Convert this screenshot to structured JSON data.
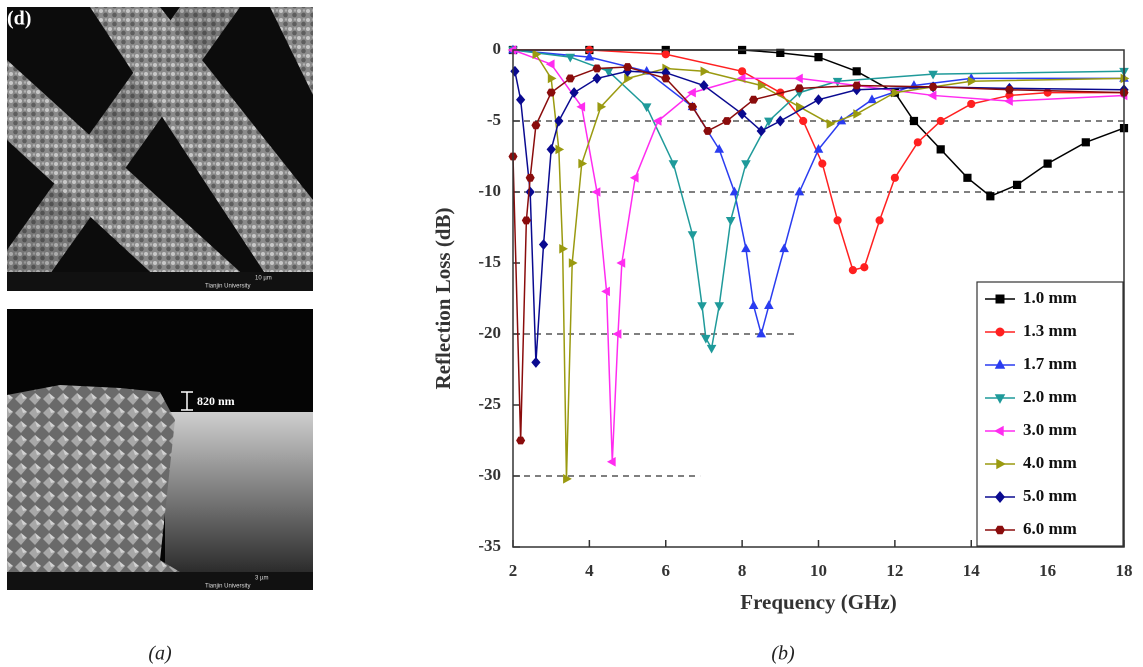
{
  "panel_labels": {
    "left": "(a)",
    "right": "(b)"
  },
  "images": {
    "top_label": "(d)",
    "top_info": "Tianjin University",
    "top_scale": "10 µm",
    "thickness": "820 nm",
    "bottom_info": "Tianjin University",
    "bottom_scale": "3 µm"
  },
  "chart_data": {
    "type": "line",
    "xlabel": "Frequency (GHz)",
    "ylabel": "Reflection Loss (dB)",
    "xlim": [
      2,
      18
    ],
    "xticks": [
      2,
      4,
      6,
      8,
      10,
      12,
      14,
      16,
      18
    ],
    "ylim": [
      -35,
      0
    ],
    "yticks": [
      0,
      -5,
      -10,
      -15,
      -20,
      -25,
      -30,
      -35
    ],
    "legend": "lower right",
    "reference_lines": [
      {
        "y": -5,
        "x": [
          2,
          18
        ]
      },
      {
        "y": -10,
        "x": [
          2,
          18
        ]
      },
      {
        "y": -20,
        "x": [
          2,
          9.4
        ]
      },
      {
        "y": -30,
        "x": [
          2,
          6.9
        ]
      }
    ],
    "series": [
      {
        "name": "1.0 mm",
        "color": "#000000",
        "marker": "square",
        "x": [
          2,
          4,
          6,
          8,
          9,
          10,
          11,
          12,
          12.5,
          13.2,
          13.9,
          14.5,
          15.2,
          16,
          17,
          18
        ],
        "values": [
          0,
          0,
          0,
          0,
          -0.2,
          -0.5,
          -1.5,
          -3,
          -5,
          -7,
          -9,
          -10.3,
          -9.5,
          -8,
          -6.5,
          -5.5
        ]
      },
      {
        "name": "1.3 mm",
        "color": "#ff2020",
        "marker": "circle",
        "x": [
          2,
          4,
          6,
          8,
          9,
          9.6,
          10.1,
          10.5,
          10.9,
          11.2,
          11.6,
          12,
          12.6,
          13.2,
          14,
          15,
          16,
          18
        ],
        "values": [
          0,
          0,
          -0.3,
          -1.5,
          -3,
          -5,
          -8,
          -12,
          -15.5,
          -15.3,
          -12,
          -9,
          -6.5,
          -5,
          -3.8,
          -3.2,
          -3,
          -3
        ]
      },
      {
        "name": "1.7 mm",
        "color": "#2a3cf0",
        "marker": "triangle-up",
        "x": [
          2,
          4,
          5.5,
          6.7,
          7.4,
          7.8,
          8.1,
          8.3,
          8.5,
          8.7,
          9.1,
          9.5,
          10,
          10.6,
          11.4,
          12.5,
          14,
          18
        ],
        "values": [
          0,
          -0.5,
          -1.5,
          -4,
          -7,
          -10,
          -14,
          -18,
          -20,
          -18,
          -14,
          -10,
          -7,
          -5,
          -3.5,
          -2.5,
          -2,
          -2
        ]
      },
      {
        "name": "2.0 mm",
        "color": "#1f9a9a",
        "marker": "triangle-down",
        "x": [
          2,
          3.5,
          4.5,
          5.5,
          6.2,
          6.7,
          6.95,
          7.05,
          7.2,
          7.4,
          7.7,
          8.1,
          8.7,
          9.5,
          10.5,
          13,
          18
        ],
        "values": [
          0,
          -0.5,
          -1.5,
          -4,
          -8,
          -13,
          -18,
          -20.3,
          -21,
          -18,
          -12,
          -8,
          -5,
          -3,
          -2.2,
          -1.7,
          -1.5
        ]
      },
      {
        "name": "3.0 mm",
        "color": "#ff2cf0",
        "marker": "triangle-left",
        "x": [
          2,
          3,
          3.8,
          4.2,
          4.45,
          4.6,
          4.75,
          4.85,
          5.2,
          5.8,
          6.7,
          8,
          9.5,
          11,
          13,
          15,
          18
        ],
        "values": [
          0,
          -1,
          -4,
          -10,
          -17,
          -29,
          -20,
          -15,
          -9,
          -5,
          -3,
          -2,
          -2,
          -2.5,
          -3.2,
          -3.6,
          -3.2
        ]
      },
      {
        "name": "4.0 mm",
        "color": "#9a9a10",
        "marker": "triangle-right",
        "x": [
          2.6,
          3,
          3.2,
          3.3,
          3.4,
          3.55,
          3.8,
          4.3,
          5,
          6,
          7,
          8.5,
          9.5,
          10.3,
          11,
          12,
          14,
          18
        ],
        "values": [
          -0.3,
          -2,
          -7,
          -14,
          -30.2,
          -15,
          -8,
          -4,
          -2,
          -1.3,
          -1.5,
          -2.5,
          -4,
          -5.2,
          -4.5,
          -3,
          -2.2,
          -2
        ]
      },
      {
        "name": "5.0 mm",
        "color": "#0a0a90",
        "marker": "diamond",
        "x": [
          2.05,
          2.2,
          2.45,
          2.6,
          2.8,
          3,
          3.2,
          3.6,
          4.2,
          5,
          6,
          7,
          8,
          8.5,
          9,
          10,
          11,
          13,
          15,
          18
        ],
        "values": [
          -1.5,
          -3.5,
          -10,
          -22,
          -13.7,
          -7,
          -5,
          -3,
          -2,
          -1.5,
          -1.6,
          -2.5,
          -4.5,
          -5.7,
          -5,
          -3.5,
          -2.8,
          -2.6,
          -2.7,
          -2.8
        ]
      },
      {
        "name": "6.0 mm",
        "color": "#8a0c0c",
        "marker": "hexagon",
        "x": [
          2,
          2.2,
          2.35,
          2.45,
          2.6,
          3,
          3.5,
          4.2,
          5,
          6,
          6.7,
          7.1,
          7.6,
          8.3,
          9.5,
          11,
          13,
          15,
          18
        ],
        "values": [
          -7.5,
          -27.5,
          -12,
          -9,
          -5.3,
          -3,
          -2,
          -1.3,
          -1.2,
          -2,
          -4,
          -5.7,
          -5,
          -3.5,
          -2.7,
          -2.5,
          -2.6,
          -2.8,
          -3
        ]
      }
    ]
  }
}
